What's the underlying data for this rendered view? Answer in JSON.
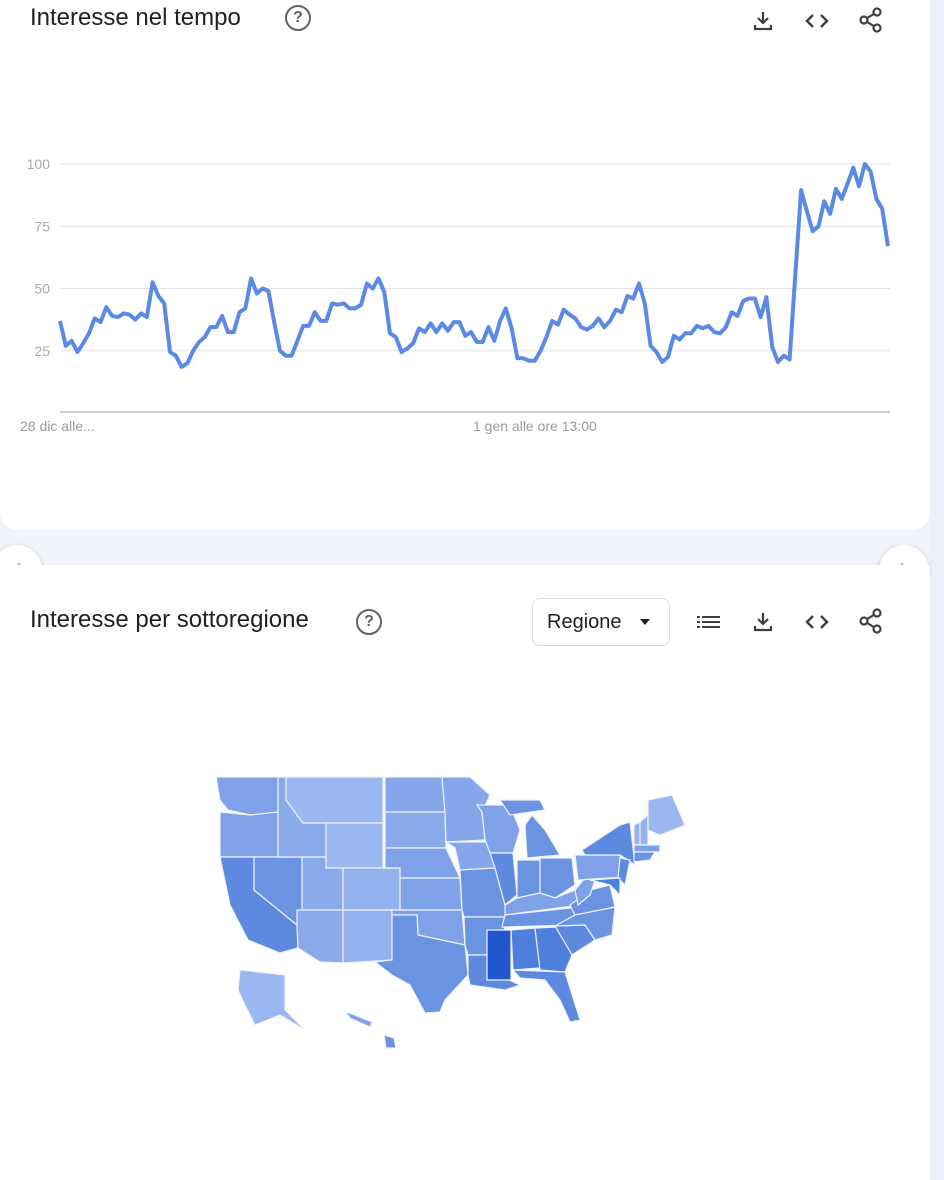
{
  "time_card": {
    "title": "Interesse nel tempo",
    "help_icon": "?",
    "icons": [
      "download-icon",
      "embed-code-icon",
      "share-icon"
    ]
  },
  "region_card": {
    "title": "Interesse per sottoregione",
    "help_icon": "?",
    "dropdown_value": "Regione",
    "icons": [
      "list-icon",
      "download-icon",
      "embed-code-icon",
      "share-icon"
    ]
  },
  "nav": {
    "prev": "chevron-left-icon",
    "next": "chevron-right-icon"
  },
  "colors": {
    "line": "#5b8ae6",
    "map_light": "#9bb7ef",
    "map_mid": "#7fa1e8",
    "map_dark": "#5d89df",
    "map_darkest": "#2157cc"
  },
  "chart_data": {
    "type": "line",
    "ylim": [
      0,
      100
    ],
    "yticks": [
      "100",
      "75",
      "50",
      "25"
    ],
    "ytick_values": [
      100,
      75,
      50,
      25
    ],
    "xtick_labels": [
      "28 dic alle...",
      "1 gen alle ore 13:00"
    ],
    "grid": true,
    "values": [
      37,
      27,
      29,
      24.5,
      28,
      32,
      38,
      36.5,
      42.5,
      39,
      38.5,
      40,
      39.5,
      37.5,
      40,
      38.5,
      52.5,
      47,
      44,
      24.5,
      23,
      18.5,
      20,
      25,
      28.5,
      30.5,
      34.5,
      34.5,
      39,
      32.5,
      32.5,
      40.5,
      42,
      54,
      48,
      50,
      49,
      36.5,
      25,
      23,
      23,
      29,
      35,
      35,
      40.5,
      37,
      37,
      44,
      43.5,
      44,
      42,
      42,
      43.5,
      52,
      50,
      54,
      48.5,
      32,
      30.5,
      24.5,
      26,
      28,
      34,
      32.5,
      36,
      32.5,
      36,
      33,
      36.5,
      36.5,
      31,
      32.5,
      28.5,
      28.5,
      34.5,
      29,
      37,
      42,
      34,
      22,
      22,
      21,
      21,
      25,
      30.5,
      37,
      35.5,
      41.5,
      39.5,
      38,
      34.5,
      33.5,
      35,
      38,
      34.5,
      37,
      41.5,
      40.5,
      47,
      46,
      52,
      44,
      27,
      24.5,
      20.5,
      22.5,
      31,
      29.5,
      32,
      32,
      35,
      34,
      35,
      32.5,
      32,
      34.5,
      40.5,
      39,
      45,
      46,
      46,
      38.5,
      46.5,
      26.5,
      20.5,
      23,
      21.5,
      56,
      89.5,
      81,
      73,
      75,
      85,
      80,
      90,
      86,
      92,
      98.5,
      91,
      100,
      97,
      86,
      82,
      67
    ]
  }
}
